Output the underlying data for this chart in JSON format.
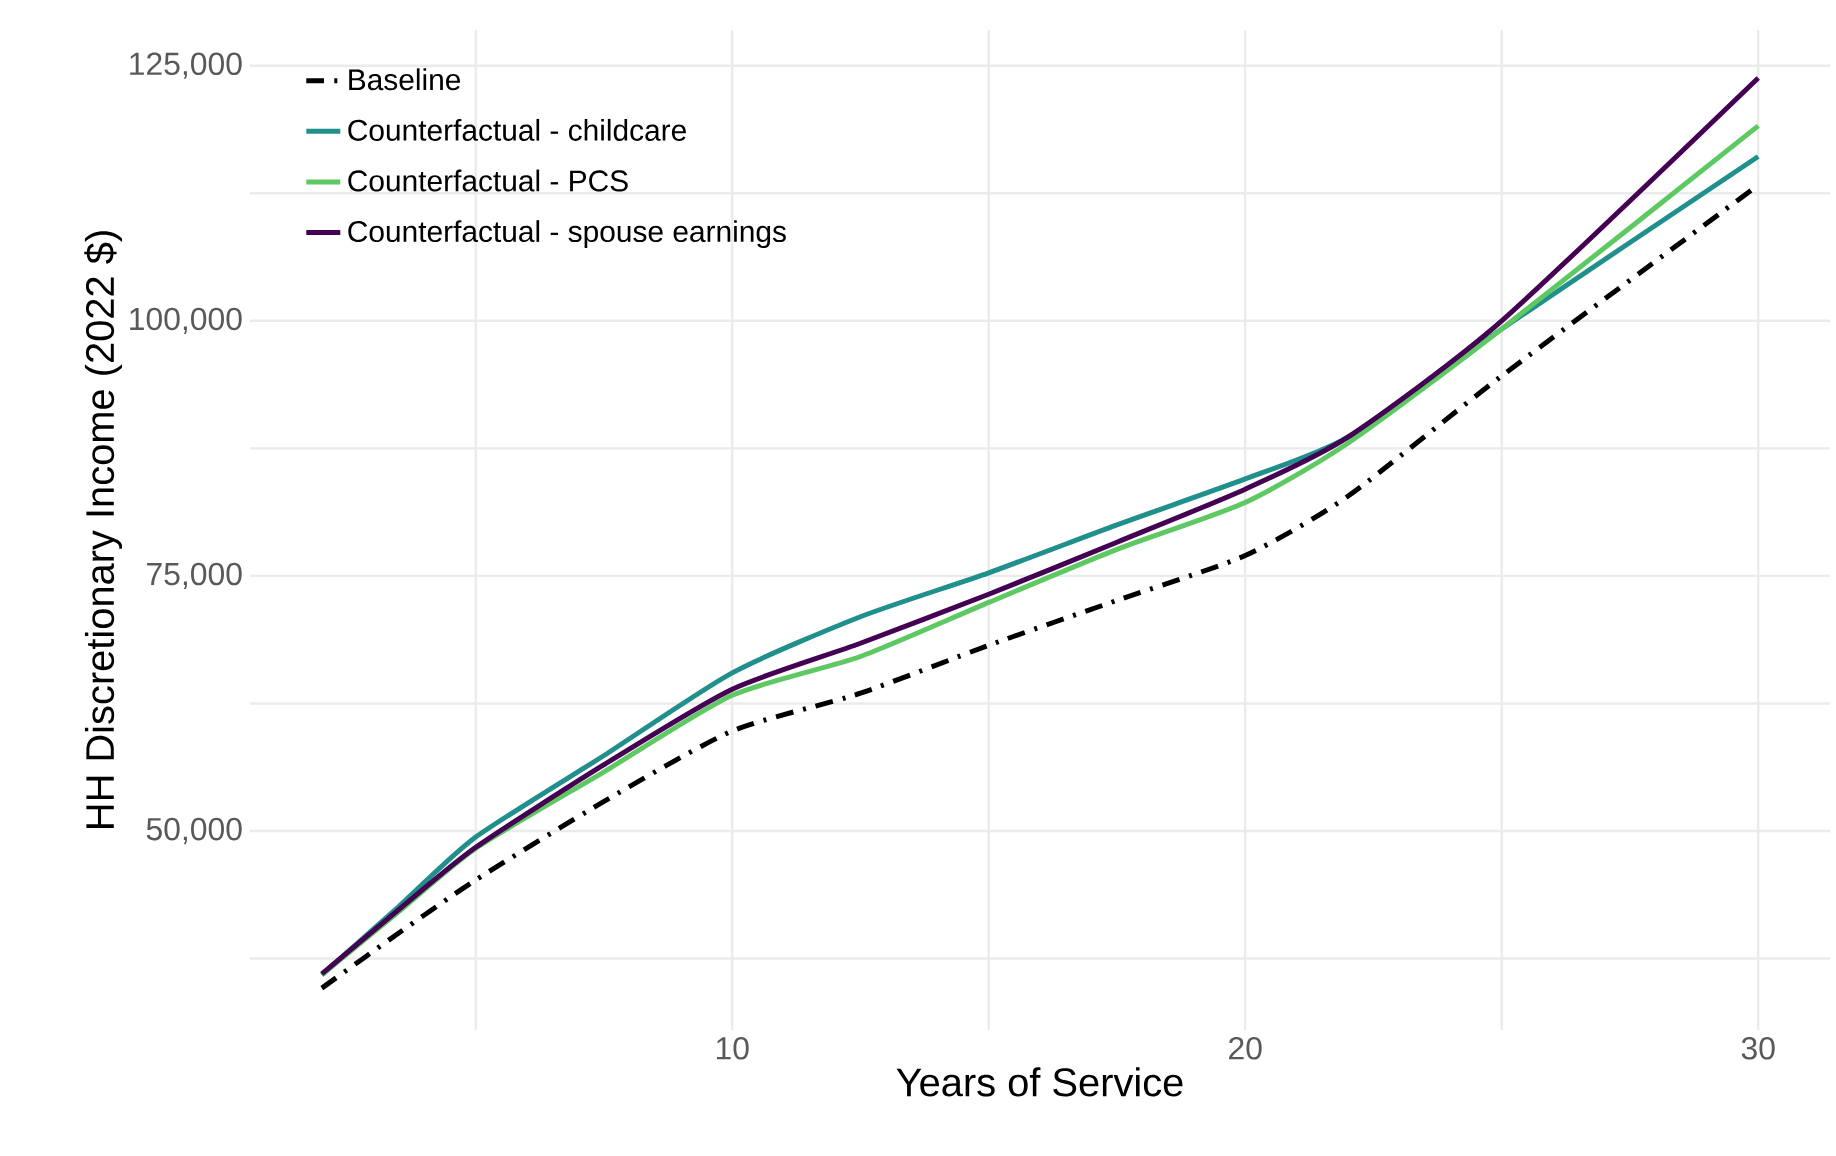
{
  "chart_data": {
    "type": "line",
    "xlabel": "Years of Service",
    "ylabel": "HH Discretionary Income (2022 $)",
    "xlim": [
      0.6,
      31.4
    ],
    "ylim": [
      30500,
      128500
    ],
    "xticks": [
      {
        "value": 5,
        "label": null
      },
      10,
      {
        "value": 15,
        "label": null
      },
      20,
      {
        "value": 25,
        "label": null
      },
      30
    ],
    "yticks": [
      {
        "value": 37500,
        "label": null
      },
      {
        "value": 50000,
        "label": "50,000"
      },
      {
        "value": 62500,
        "label": null
      },
      {
        "value": 75000,
        "label": "75,000"
      },
      {
        "value": 87500,
        "label": null
      },
      {
        "value": 100000,
        "label": "100,000"
      },
      {
        "value": 112500,
        "label": null
      },
      {
        "value": 125000,
        "label": "125,000"
      }
    ],
    "x": [
      2,
      3.5,
      5,
      7.5,
      10,
      12.5,
      15,
      17.5,
      20,
      22,
      25,
      30
    ],
    "grid": true,
    "legend": "top left",
    "marker": "none",
    "series": [
      {
        "name": "Baseline",
        "color": "#000000",
        "line_style": "dashdot",
        "values": [
          34600,
          40000,
          45200,
          52900,
          59800,
          63500,
          68200,
          72600,
          77000,
          82800,
          94600,
          113300
        ]
      },
      {
        "name": "Counterfactual - childcare",
        "color": "#21908c",
        "values": [
          35900,
          42600,
          49400,
          57400,
          65500,
          71000,
          75300,
          80000,
          84500,
          88600,
          99200,
          116100
        ]
      },
      {
        "name": "Counterfactual - PCS",
        "color": "#5ec962",
        "values": [
          35900,
          42100,
          48300,
          55800,
          63300,
          67100,
          72400,
          77600,
          82200,
          88000,
          99200,
          119100
        ]
      },
      {
        "name": "Counterfactual - spouse earnings",
        "color": "#440154",
        "values": [
          36000,
          42300,
          48400,
          56500,
          63900,
          68400,
          73200,
          78300,
          83500,
          88600,
          100000,
          123800
        ]
      }
    ]
  }
}
